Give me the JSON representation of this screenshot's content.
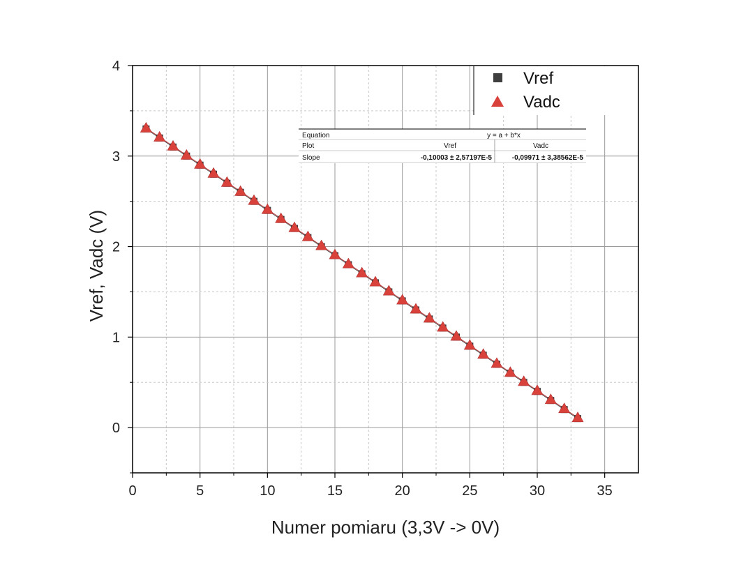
{
  "chart_data": {
    "type": "scatter",
    "xlabel": "Numer pomiaru (3,3V -> 0V)",
    "ylabel": "Vref, Vadc (V)",
    "xlim": [
      0,
      37.5
    ],
    "ylim": [
      -0.5,
      4
    ],
    "x_ticks": [
      0,
      5,
      10,
      15,
      20,
      25,
      30,
      35
    ],
    "y_ticks": [
      0,
      1,
      2,
      3,
      4
    ],
    "x_minor_step": 2.5,
    "y_minor_step": 0.5,
    "grid": true,
    "legend_position": "top-right",
    "x": [
      1,
      2,
      3,
      4,
      5,
      6,
      7,
      8,
      9,
      10,
      11,
      12,
      13,
      14,
      15,
      16,
      17,
      18,
      19,
      20,
      21,
      22,
      23,
      24,
      25,
      26,
      27,
      28,
      29,
      30,
      31,
      32,
      33
    ],
    "series": [
      {
        "name": "Vref",
        "marker": "square",
        "color": "#3f3f3f",
        "values": [
          3.3,
          3.2,
          3.1,
          3.0,
          2.9,
          2.8,
          2.7,
          2.6,
          2.5,
          2.4,
          2.3,
          2.2,
          2.1,
          2.0,
          1.9,
          1.8,
          1.7,
          1.6,
          1.5,
          1.4,
          1.3,
          1.2,
          1.1,
          1.0,
          0.9,
          0.8,
          0.7,
          0.6,
          0.5,
          0.4,
          0.3,
          0.2,
          0.1
        ]
      },
      {
        "name": "Vadc",
        "marker": "triangle",
        "color": "#d9413b",
        "values": [
          3.31,
          3.21,
          3.11,
          3.01,
          2.91,
          2.81,
          2.71,
          2.61,
          2.51,
          2.41,
          2.31,
          2.21,
          2.11,
          2.01,
          1.91,
          1.81,
          1.71,
          1.61,
          1.51,
          1.41,
          1.31,
          1.21,
          1.11,
          1.01,
          0.91,
          0.81,
          0.71,
          0.61,
          0.51,
          0.41,
          0.31,
          0.21,
          0.11
        ]
      }
    ],
    "fit_table": {
      "equation_label": "Equation",
      "equation_value": "y = a + b*x",
      "plot_label": "Plot",
      "plot_values": [
        "Vref",
        "Vadc"
      ],
      "slope_label": "Slope",
      "slope_values": [
        "-0,10003 ± 2,57197E-5",
        "-0,09971 ± 3,38562E-5"
      ]
    }
  }
}
